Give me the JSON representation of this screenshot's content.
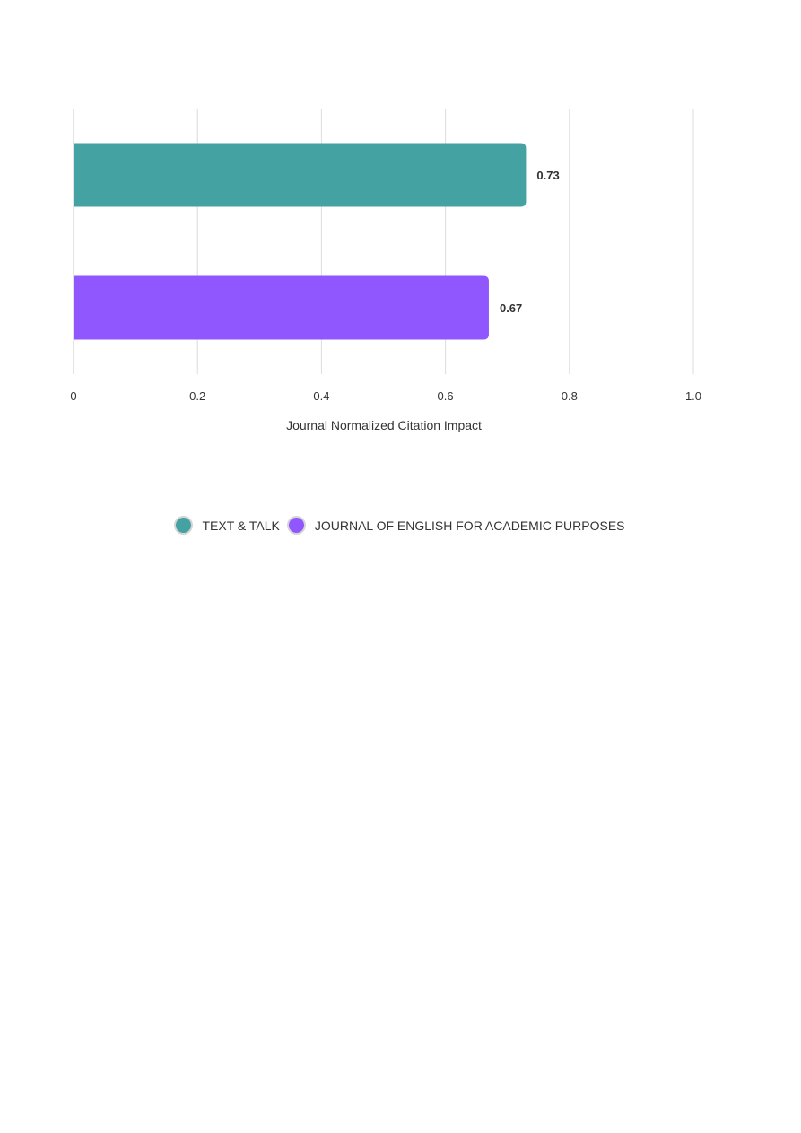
{
  "chart_data": {
    "type": "bar",
    "orientation": "horizontal",
    "title": "",
    "xlabel": "Journal Normalized Citation Impact",
    "ylabel": "",
    "xlim": [
      0,
      1.0
    ],
    "x_ticks": [
      "0",
      "0.2",
      "0.4",
      "0.6",
      "0.8",
      "1.0"
    ],
    "grid": true,
    "legend_position": "bottom-center",
    "series": [
      {
        "name": "TEXT & TALK",
        "value": 0.73,
        "label": "0.73",
        "color": "#45a2a2"
      },
      {
        "name": "JOURNAL OF ENGLISH FOR ACADEMIC PURPOSES",
        "value": 0.67,
        "label": "0.67",
        "color": "#9157ff"
      }
    ]
  },
  "legend": {
    "items": [
      {
        "label": "TEXT & TALK",
        "color": "#45a2a2"
      },
      {
        "label": "JOURNAL OF ENGLISH FOR ACADEMIC PURPOSES",
        "color": "#9157ff"
      }
    ]
  }
}
